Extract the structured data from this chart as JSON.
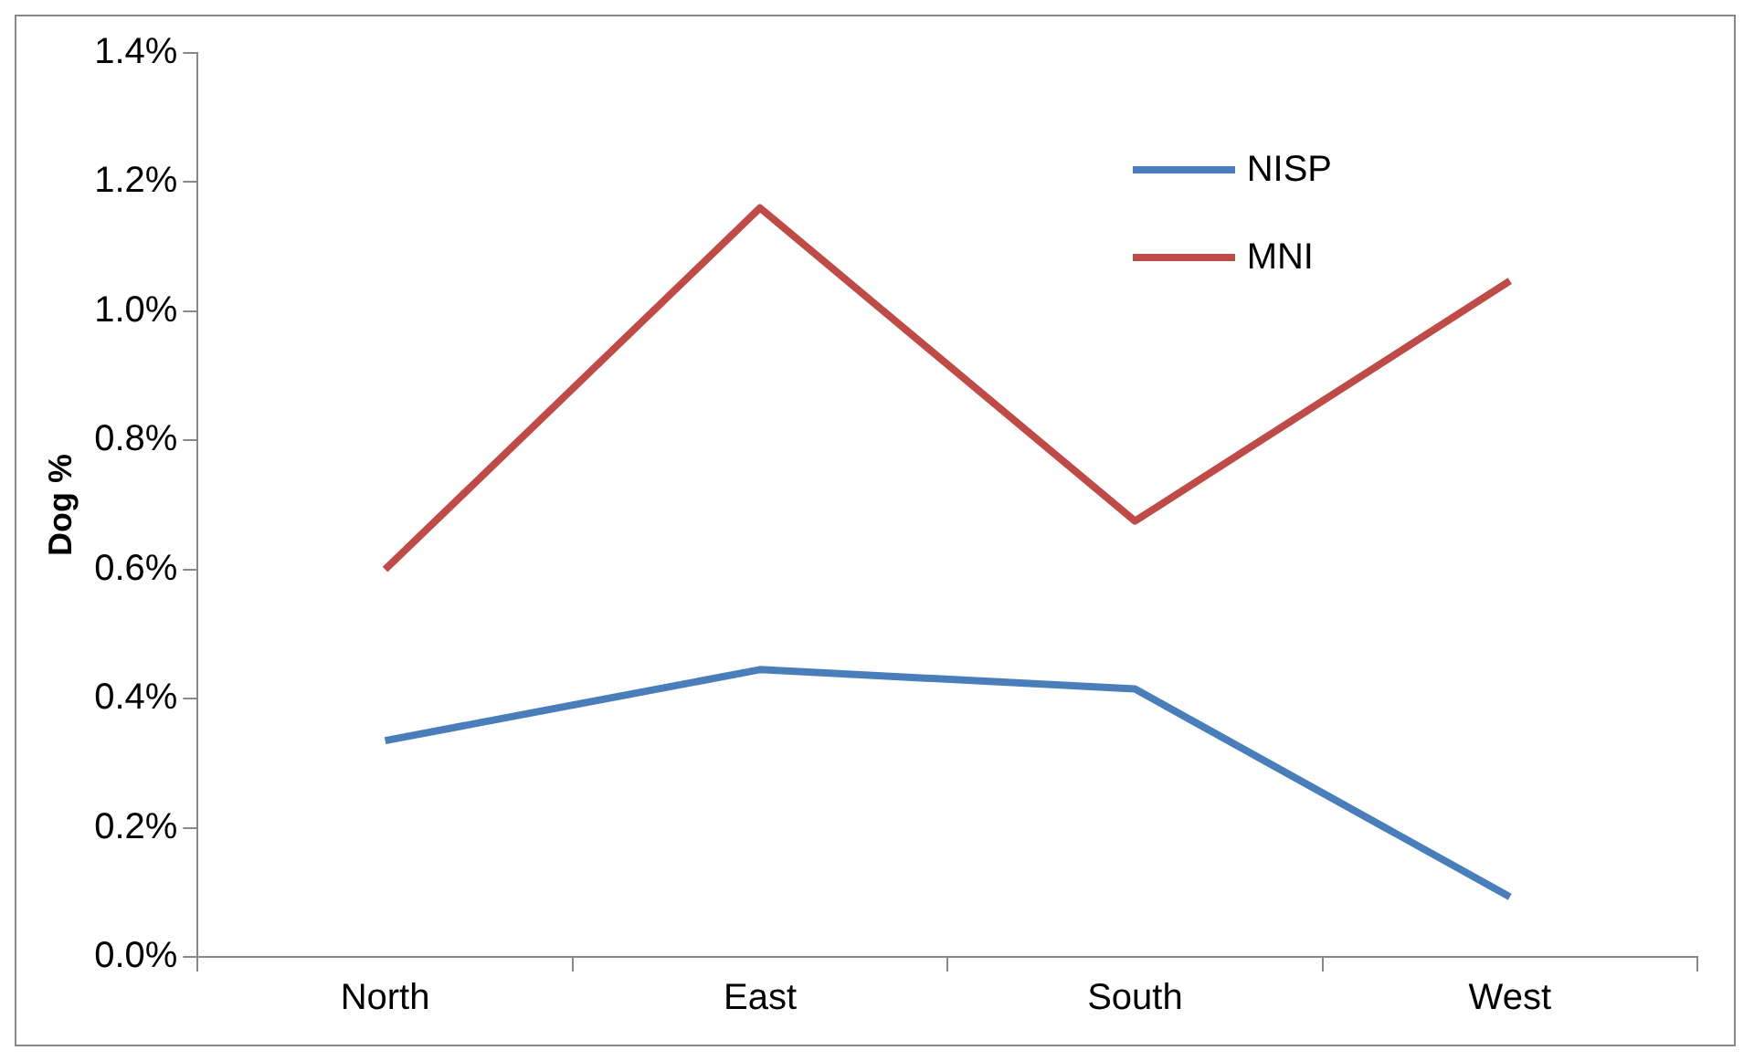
{
  "chart_data": {
    "type": "line",
    "ylabel": "Dog %",
    "categories": [
      "North",
      "East",
      "South",
      "West"
    ],
    "series": [
      {
        "name": "NISP",
        "color": "#4a7ebb",
        "values": [
          0.335,
          0.445,
          0.415,
          0.093
        ]
      },
      {
        "name": "MNI",
        "color": "#be4b48",
        "values": [
          0.6,
          1.16,
          0.675,
          1.047
        ]
      }
    ],
    "ylim": [
      0,
      1.4
    ],
    "yticks": [
      {
        "value": 0,
        "label": "0.0%"
      },
      {
        "value": 0.2,
        "label": "0.2%"
      },
      {
        "value": 0.4,
        "label": "0.4%"
      },
      {
        "value": 0.6,
        "label": "0.6%"
      },
      {
        "value": 0.8,
        "label": "0.8%"
      },
      {
        "value": 1,
        "label": "1.0%"
      },
      {
        "value": 1.2,
        "label": "1.2%"
      },
      {
        "value": 1.4,
        "label": "1.4%"
      }
    ],
    "grid": false,
    "legend": "top right",
    "marker": "none",
    "line_style": "solid"
  }
}
